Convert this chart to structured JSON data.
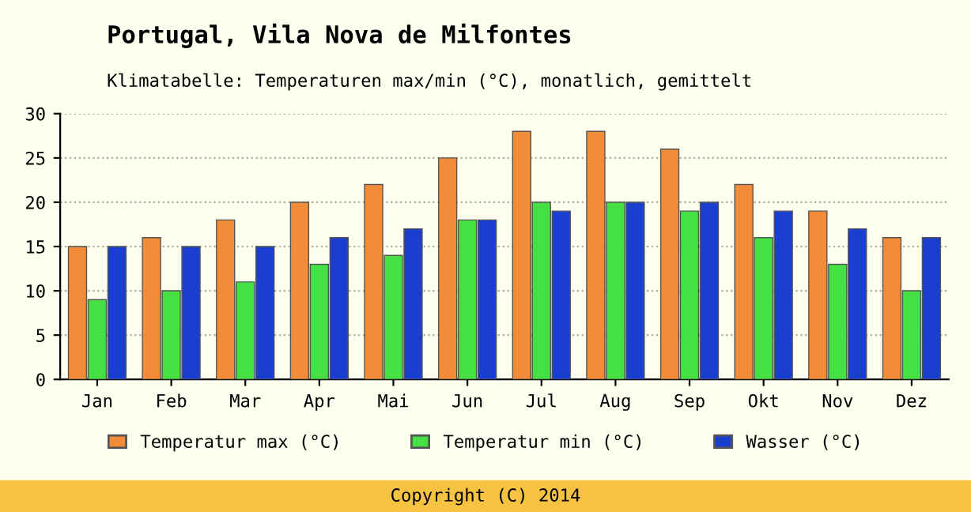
{
  "chart_data": {
    "type": "bar",
    "title": "Portugal, Vila Nova de Milfontes",
    "subtitle": "Klimatabelle: Temperaturen max/min (°C), monatlich, gemittelt",
    "categories": [
      "Jan",
      "Feb",
      "Mar",
      "Apr",
      "Mai",
      "Jun",
      "Jul",
      "Aug",
      "Sep",
      "Okt",
      "Nov",
      "Dez"
    ],
    "series": [
      {
        "name": "Temperatur max (°C)",
        "color": "#f28c38",
        "values": [
          15,
          16,
          18,
          20,
          22,
          25,
          28,
          28,
          26,
          22,
          19,
          16
        ]
      },
      {
        "name": "Temperatur min (°C)",
        "color": "#44e044",
        "values": [
          9,
          10,
          11,
          13,
          14,
          18,
          20,
          20,
          19,
          16,
          13,
          10
        ]
      },
      {
        "name": "Wasser (°C)",
        "color": "#1a3fd0",
        "values": [
          15,
          15,
          15,
          16,
          17,
          18,
          19,
          20,
          20,
          19,
          17,
          16
        ]
      }
    ],
    "ylim": [
      0,
      30
    ],
    "yticks": [
      0,
      5,
      10,
      15,
      20,
      25,
      30
    ],
    "grid": "y",
    "legend": "bottom",
    "annotations": [
      "Copyright (C) 2014"
    ]
  }
}
